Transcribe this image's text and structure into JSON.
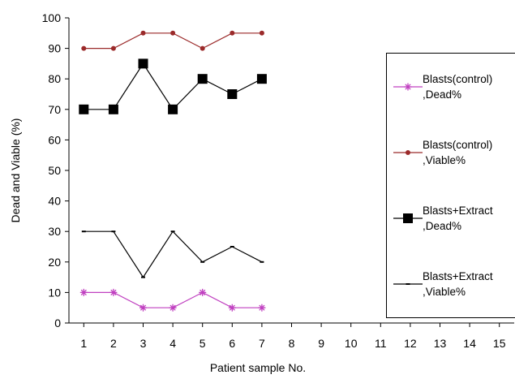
{
  "chart_data": {
    "type": "line",
    "xlabel": "Patient sample No.",
    "ylabel": "Dead and Viable (%)",
    "x": [
      1,
      2,
      3,
      4,
      5,
      6,
      7
    ],
    "xlim": [
      0.5,
      15.5
    ],
    "xticks": [
      1,
      2,
      3,
      4,
      5,
      6,
      7,
      8,
      9,
      10,
      11,
      12,
      13,
      14,
      15
    ],
    "ylim": [
      0,
      100
    ],
    "yticks": [
      0,
      10,
      20,
      30,
      40,
      50,
      60,
      70,
      80,
      90,
      100
    ],
    "grid": false,
    "legend": "right",
    "series": [
      {
        "name": "Blasts(control) ,Dead%",
        "color": "#c040c0",
        "marker": "star",
        "values": [
          10,
          10,
          5,
          5,
          10,
          5,
          5
        ]
      },
      {
        "name": "Blasts(control) ,Viable%",
        "color": "#9b2a2a",
        "marker": "circle",
        "values": [
          90,
          90,
          95,
          95,
          90,
          95,
          95
        ]
      },
      {
        "name": "Blasts+Extract ,Dead%",
        "color": "#000000",
        "marker": "square",
        "values": [
          70,
          70,
          85,
          70,
          80,
          75,
          80
        ]
      },
      {
        "name": "Blasts+Extract ,Viable%",
        "color": "#000000",
        "marker": "dash",
        "values": [
          30,
          30,
          15,
          30,
          20,
          25,
          20
        ]
      }
    ]
  }
}
